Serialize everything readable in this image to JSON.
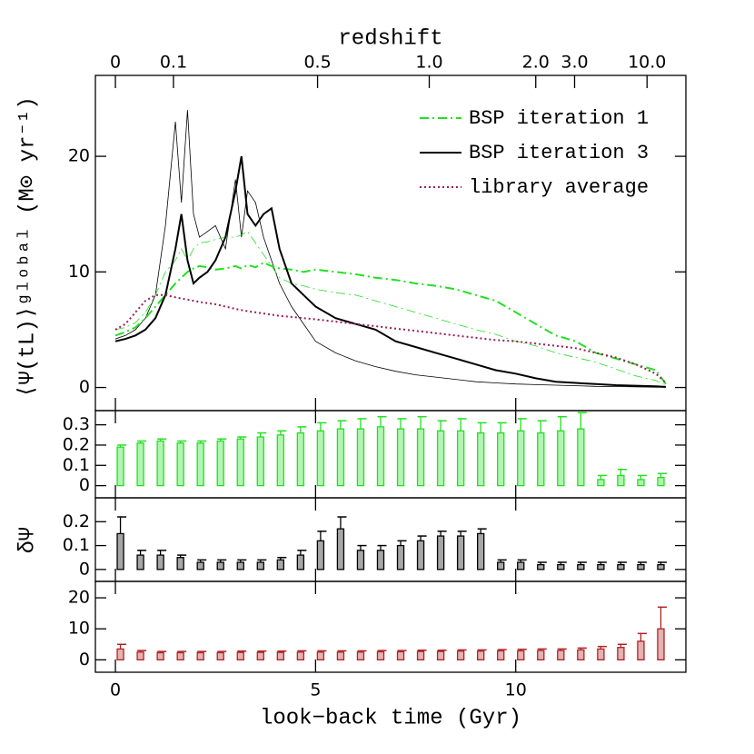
{
  "chart_data": [
    {
      "type": "line",
      "x2label": "redshift",
      "ylabel": "⟨Ψ(tL)⟩ᵍˡᵒᵇᵃˡ  (M⊙ yr⁻¹)",
      "xlim": [
        -0.5,
        14.25
      ],
      "ylim": [
        -2,
        27
      ],
      "yticks": [
        0,
        10,
        20
      ],
      "x2ticks": [
        0,
        {
          "value": 1.45,
          "label": "0.1"
        },
        {
          "value": 5.05,
          "label": "0.5"
        },
        {
          "value": 7.84,
          "label": "1.0"
        },
        {
          "value": 10.5,
          "label": "2.0"
        },
        {
          "value": 11.47,
          "label": "3.0"
        },
        {
          "value": 13.28,
          "label": "10.0"
        }
      ],
      "legend": "upper right",
      "x": [
        0,
        0.25,
        0.5,
        0.75,
        1.0,
        1.25,
        1.5,
        1.65,
        1.8,
        1.95,
        2.1,
        2.3,
        2.5,
        2.75,
        3.0,
        3.15,
        3.3,
        3.5,
        3.7,
        3.9,
        4.1,
        4.4,
        4.7,
        5.0,
        5.5,
        6.0,
        6.5,
        7.0,
        7.5,
        8.0,
        8.5,
        9.0,
        9.5,
        10.0,
        10.5,
        11.0,
        11.5,
        12.0,
        12.5,
        13.0,
        13.5,
        13.75
      ],
      "series": [
        {
          "color": "#000000",
          "linestyle": "solid",
          "linewidth": 0.8,
          "values": [
            4.2,
            4.5,
            5,
            6,
            8,
            14,
            23,
            16,
            24,
            15,
            13,
            13.5,
            14,
            12,
            18,
            13,
            17,
            16,
            13,
            11,
            9,
            7,
            5.5,
            4,
            3,
            2.3,
            1.8,
            1.4,
            1.1,
            0.9,
            0.7,
            0.5,
            0.4,
            0.3,
            0.25,
            0.2,
            0.15,
            0.1,
            0.08,
            0.05,
            0.03,
            0.02
          ]
        },
        {
          "color": "#22e022",
          "linestyle": "dashdot",
          "linewidth": 0.8,
          "values": [
            5,
            5.2,
            5.6,
            6.5,
            8,
            10,
            11,
            12,
            11,
            12,
            12.5,
            12.6,
            12.8,
            13,
            13,
            13.2,
            13.5,
            12.5,
            11.5,
            10.5,
            9.5,
            9.0,
            8.8,
            8.5,
            8.2,
            8.0,
            7.5,
            7.0,
            6.5,
            6.0,
            5.5,
            5.0,
            4.6,
            4.0,
            3.6,
            3.0,
            2.6,
            2.2,
            1.6,
            1.0,
            0.6,
            0.2
          ]
        },
        {
          "name": "BSP iteration 1",
          "color": "#22e022",
          "linestyle": "dashdot",
          "linewidth": 2,
          "values": [
            4.5,
            4.8,
            5.2,
            6,
            7,
            8,
            9,
            9.5,
            10,
            10.3,
            10.5,
            10.4,
            10.2,
            10.3,
            10.5,
            10.3,
            10.6,
            10.4,
            10.8,
            10.5,
            10.3,
            10.2,
            10.0,
            10.2,
            10.0,
            9.8,
            9.5,
            9.3,
            9.0,
            8.8,
            8.5,
            8.0,
            7.5,
            6.5,
            5.5,
            4.5,
            4.0,
            3.0,
            2.5,
            2.0,
            1.5,
            0.3
          ]
        },
        {
          "name": "BSP iteration 3",
          "color": "#000000",
          "linestyle": "solid",
          "linewidth": 2,
          "values": [
            4.0,
            4.2,
            4.5,
            5,
            6,
            8,
            12,
            15,
            11,
            9,
            9.5,
            10,
            11,
            13,
            17,
            20,
            15,
            14,
            15,
            15.5,
            12,
            9,
            8,
            7,
            6,
            5.5,
            5,
            4,
            3.5,
            3,
            2.5,
            2,
            1.5,
            1.2,
            0.8,
            0.5,
            0.4,
            0.3,
            0.2,
            0.15,
            0.1,
            0.05
          ]
        },
        {
          "name": "library average",
          "color": "#9a1f55",
          "linestyle": "dotted",
          "linewidth": 2,
          "values": [
            5,
            5.5,
            6.5,
            7.5,
            8,
            8,
            7.8,
            7.7,
            7.6,
            7.5,
            7.4,
            7.3,
            7.2,
            7.0,
            6.8,
            6.7,
            6.6,
            6.5,
            6.4,
            6.3,
            6.2,
            6.1,
            6.0,
            5.9,
            5.7,
            5.5,
            5.3,
            5.1,
            4.9,
            4.7,
            4.5,
            4.3,
            4.1,
            4.0,
            3.8,
            3.6,
            3.4,
            3.0,
            2.6,
            2.0,
            1.2,
            0.4
          ]
        }
      ]
    },
    {
      "type": "bar",
      "color": "#22e022",
      "xlim": [
        -0.5,
        14.25
      ],
      "ylim": [
        -0.06,
        0.37
      ],
      "yticks": [
        0,
        0.1,
        0.2,
        0.3
      ],
      "x": [
        0,
        0.5,
        1,
        1.5,
        2,
        2.5,
        3,
        3.5,
        4,
        4.5,
        5,
        5.5,
        6,
        6.5,
        7,
        7.5,
        8,
        8.5,
        9,
        9.5,
        10,
        10.5,
        11,
        11.5,
        12,
        12.5,
        13,
        13.5
      ],
      "values": [
        0.19,
        0.21,
        0.22,
        0.21,
        0.21,
        0.22,
        0.23,
        0.24,
        0.25,
        0.26,
        0.27,
        0.28,
        0.28,
        0.29,
        0.28,
        0.28,
        0.27,
        0.27,
        0.26,
        0.26,
        0.27,
        0.26,
        0.27,
        0.28,
        0.03,
        0.05,
        0.03,
        0.04
      ],
      "errors": [
        0.01,
        0.01,
        0.01,
        0.01,
        0.01,
        0.01,
        0.01,
        0.02,
        0.02,
        0.03,
        0.04,
        0.04,
        0.05,
        0.05,
        0.05,
        0.06,
        0.05,
        0.06,
        0.05,
        0.05,
        0.06,
        0.06,
        0.07,
        0.08,
        0.02,
        0.03,
        0.02,
        0.02
      ]
    },
    {
      "type": "bar",
      "ylabel": "δΨ",
      "color": "#000000",
      "xlim": [
        -0.5,
        14.25
      ],
      "ylim": [
        -0.05,
        0.3
      ],
      "yticks": [
        0,
        0.1,
        0.2
      ],
      "x": [
        0,
        0.5,
        1,
        1.5,
        2,
        2.5,
        3,
        3.5,
        4,
        4.5,
        5,
        5.5,
        6,
        6.5,
        7,
        7.5,
        8,
        8.5,
        9,
        9.5,
        10,
        10.5,
        11,
        11.5,
        12,
        12.5,
        13,
        13.5
      ],
      "values": [
        0.15,
        0.06,
        0.06,
        0.05,
        0.03,
        0.03,
        0.03,
        0.03,
        0.04,
        0.06,
        0.12,
        0.17,
        0.08,
        0.08,
        0.1,
        0.12,
        0.14,
        0.14,
        0.15,
        0.03,
        0.03,
        0.02,
        0.02,
        0.02,
        0.02,
        0.02,
        0.02,
        0.02
      ],
      "errors": [
        0.07,
        0.02,
        0.02,
        0.01,
        0.01,
        0.01,
        0.01,
        0.01,
        0.01,
        0.02,
        0.04,
        0.05,
        0.02,
        0.02,
        0.02,
        0.02,
        0.02,
        0.02,
        0.02,
        0.01,
        0.01,
        0.01,
        0.01,
        0.01,
        0.01,
        0.01,
        0.01,
        0.01
      ]
    },
    {
      "type": "bar",
      "color": "#b22222",
      "xlabel": "look−back time (Gyr)",
      "xlim": [
        -0.5,
        14.25
      ],
      "ylim": [
        -4,
        25.3
      ],
      "yticks": [
        0,
        10,
        20
      ],
      "xticks": [
        0,
        5,
        10
      ],
      "x": [
        0,
        0.5,
        1,
        1.5,
        2,
        2.5,
        3,
        3.5,
        4,
        4.5,
        5,
        5.5,
        6,
        6.5,
        7,
        7.5,
        8,
        8.5,
        9,
        9.5,
        10,
        10.5,
        11,
        11.5,
        12,
        12.5,
        13,
        13.5
      ],
      "values": [
        3.5,
        2.5,
        2.3,
        2.3,
        2.3,
        2.3,
        2.4,
        2.4,
        2.4,
        2.5,
        2.5,
        2.5,
        2.5,
        2.6,
        2.6,
        2.7,
        2.7,
        2.8,
        2.8,
        2.9,
        2.9,
        3.0,
        3.0,
        3.2,
        3.5,
        4.0,
        6.0,
        10.0
      ],
      "errors": [
        1.5,
        0.5,
        0.4,
        0.4,
        0.4,
        0.4,
        0.4,
        0.4,
        0.4,
        0.4,
        0.4,
        0.4,
        0.4,
        0.4,
        0.4,
        0.4,
        0.4,
        0.4,
        0.4,
        0.4,
        0.5,
        0.5,
        0.5,
        0.6,
        0.8,
        1.0,
        2.5,
        7.0
      ]
    }
  ]
}
